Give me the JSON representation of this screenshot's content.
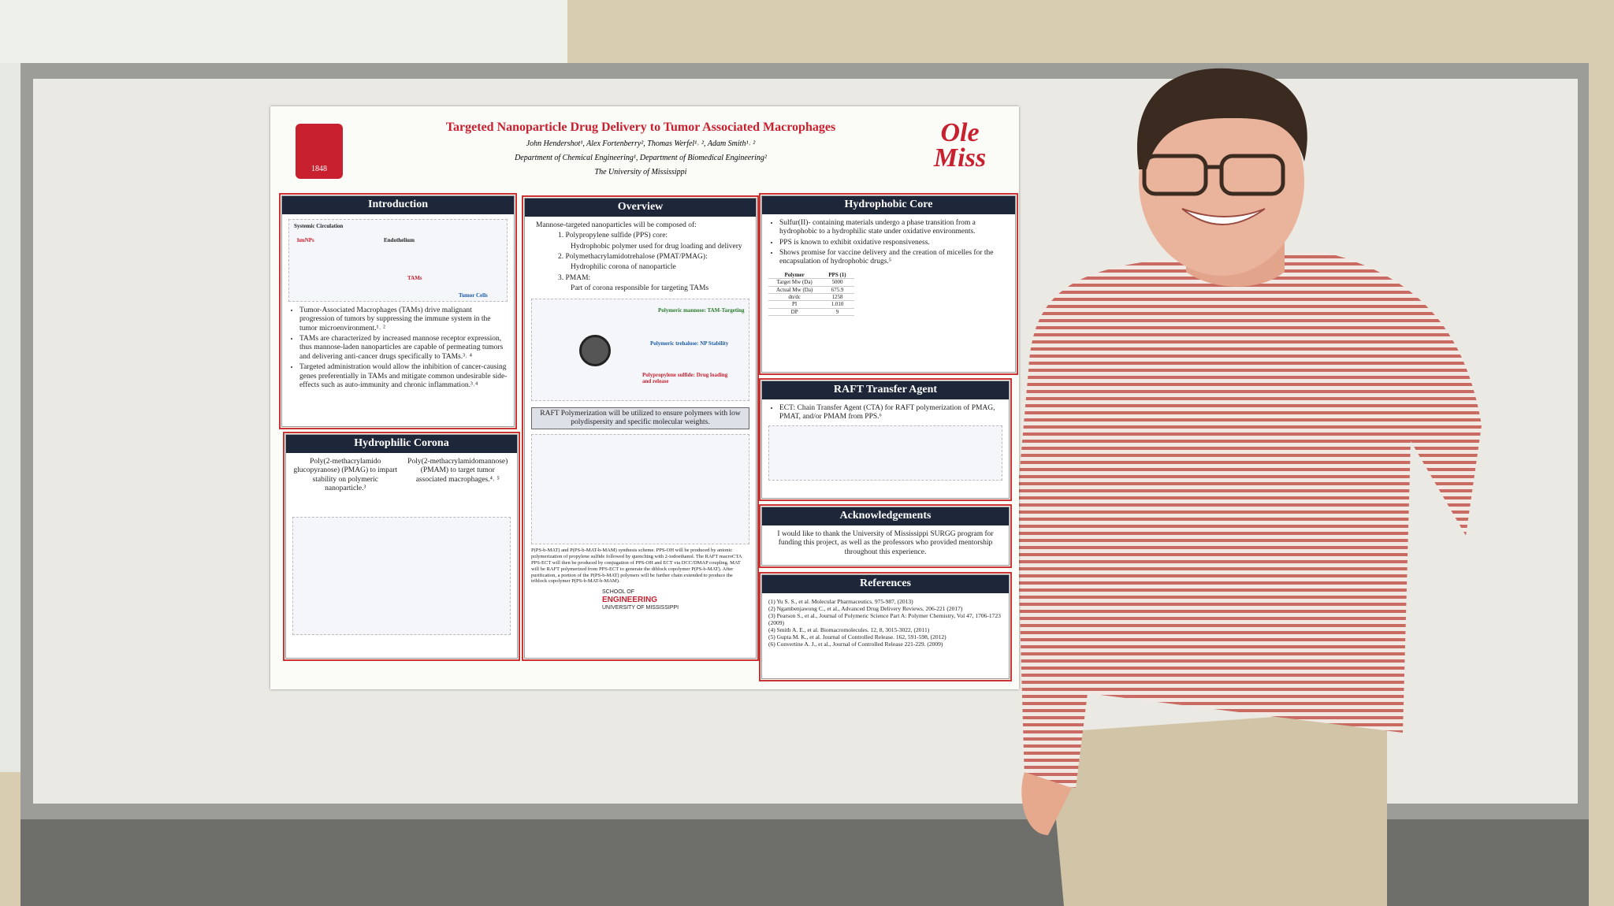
{
  "header": {
    "seal_year": "1848",
    "title": "Targeted Nanoparticle Drug Delivery to Tumor Associated Macrophages",
    "authors": "John Hendershot¹, Alex Fortenberry², Thomas Werfel¹˒ ², Adam Smith¹˒ ²",
    "affiliation": "Department of Chemical Engineering¹, Department of Biomedical Engineering²",
    "university": "The University of Mississippi",
    "brand": "Ole Miss"
  },
  "introduction": {
    "heading": "Introduction",
    "figure_labels": [
      "Systemic Circulation",
      "hmNPs",
      "Endothelium",
      "TAMs",
      "Tumor Cells"
    ],
    "bullets": [
      "Tumor-Associated Macrophages (TAMs) drive malignant progression of tumors by suppressing the immune system in the tumor microenvironment.¹˒ ²",
      "TAMs are characterized by increased mannose receptor expression, thus mannose-laden nanoparticles are capable of permeating tumors and delivering anti-cancer drugs specifically to TAMs.³˒ ⁴",
      "Targeted administration would allow the inhibition of cancer-causing genes preferentially in TAMs and mitigate common undesirable side-effects such as auto-immunity and chronic inflammation.³˒⁴"
    ]
  },
  "hydrophilic_corona": {
    "heading": "Hydrophilic Corona",
    "columns": [
      "Poly(2-methacrylamido glucopyranose) (PMAG) to impart stability on polymeric nanoparticle.³",
      "Poly(2-methacrylamidomannose) (PMAM) to target tumor associated macrophages.⁴˒ ⁵"
    ]
  },
  "overview": {
    "heading": "Overview",
    "items": [
      "Mannose-targeted nanoparticles will be composed of:",
      "1. Polypropylene sulfide (PPS) core:",
      "Hydrophobic polymer used for drug loading and delivery",
      "2. Polymethacrylamidotrehalose (PMAT/PMAG):",
      "Hydrophilic corona of nanoparticle",
      "3. PMAM:",
      "Part of corona responsible for targeting TAMs"
    ],
    "figure_labels": [
      "Polymeric mannose: TAM-Targeting",
      "Polymeric trehalose: NP Stability",
      "Polypropylene sulfide: Drug loading and release"
    ],
    "raft_note": "RAFT Polymerization will be utilized to ensure polymers with low polydispersity and specific molecular weights.",
    "caption": "P(PS-b-MAT) and P(PS-b-MAT-b-MAM) synthesis scheme. PPS-OH will be produced by anionic polymerization of propylene sulfide followed by quenching with 2-iodoethanol. The RAFT macroCTA PPS-ECT will then be produced by conjugation of PPS-OH and ECT via DCC/DMAP coupling. MAT will be RAFT polymerized from PPS-ECT to generate the diblock copolymer P(PS-b-MAT). After purification, a portion of the P(PS-b-MAT) polymers will be further chain extended to produce the triblock copolymer P(PS-b-MAT-b-MAM).",
    "school": [
      "SCHOOL OF",
      "ENGINEERING",
      "UNIVERSITY OF MISSISSIPPI"
    ]
  },
  "hydrophobic_core": {
    "heading": "Hydrophobic Core",
    "bullets": [
      "Sulfur(II)- containing materials undergo a phase transition from a hydrophobic to a hydrophilic state under oxidative environments.",
      "PPS is known to exhibit oxidative responsiveness.",
      "Shows promise for vaccine delivery and the creation of micelles for the encapsulation of hydrophobic drugs.⁵"
    ],
    "table": [
      [
        "Polymer",
        "PPS (1)"
      ],
      [
        "Target Mw (Da)",
        "5000"
      ],
      [
        "Actual Mw (Da)",
        "675.9"
      ],
      [
        "dn/dc",
        "1258"
      ],
      [
        "PI",
        "1.010"
      ],
      [
        "DP",
        "9"
      ]
    ]
  },
  "raft_transfer_agent": {
    "heading": "RAFT Transfer Agent",
    "bullet": "ECT: Chain Transfer Agent (CTA) for RAFT polymerization of PMAG, PMAT, and/or PMAM from PPS.⁶"
  },
  "acknowledgements": {
    "heading": "Acknowledgements",
    "text": "I would like to thank the University of Mississippi SURGG program for funding this project, as well as the professors who provided mentorship throughout this experience."
  },
  "references": {
    "heading": "References",
    "items": [
      "(1) Yu S. S., et al. Molecular Pharmaceutics. 975-987, (2013)",
      "(2) Ngambenjawong C., et al., Advanced Drug Delivery Reviews. 206-221 (2017)",
      "(3) Pearson S., et al., Journal of Polymeric Science Part A: Polymer Chemistry, Vol 47, 1706-1723 (2009)",
      "(4) Smith A. E., et al. Biomacromolecules. 12, 8, 3015-3022, (2011)",
      "(5) Gupta M. K., et al. Journal of Controlled Release. 162, 591-598, (2012)",
      "(6) Convertine A. J., et al., Journal of Controlled Release 221-229. (2009)"
    ]
  }
}
